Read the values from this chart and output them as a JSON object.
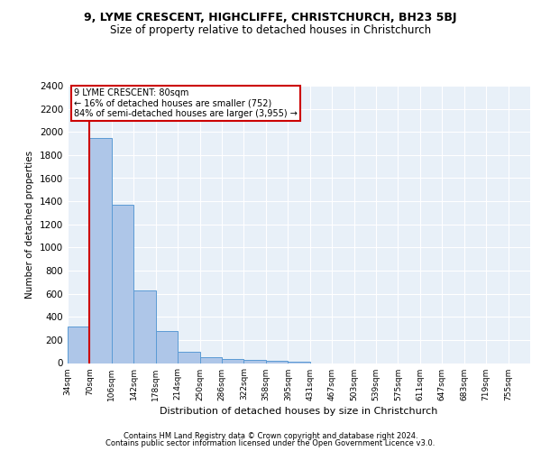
{
  "title_line1": "9, LYME CRESCENT, HIGHCLIFFE, CHRISTCHURCH, BH23 5BJ",
  "title_line2": "Size of property relative to detached houses in Christchurch",
  "xlabel": "Distribution of detached houses by size in Christchurch",
  "ylabel": "Number of detached properties",
  "footer_line1": "Contains HM Land Registry data © Crown copyright and database right 2024.",
  "footer_line2": "Contains public sector information licensed under the Open Government Licence v3.0.",
  "bin_labels": [
    "34sqm",
    "70sqm",
    "106sqm",
    "142sqm",
    "178sqm",
    "214sqm",
    "250sqm",
    "286sqm",
    "322sqm",
    "358sqm",
    "395sqm",
    "431sqm",
    "467sqm",
    "503sqm",
    "539sqm",
    "575sqm",
    "611sqm",
    "647sqm",
    "683sqm",
    "719sqm",
    "755sqm"
  ],
  "bar_values": [
    320,
    1950,
    1370,
    625,
    280,
    100,
    50,
    35,
    28,
    20,
    15,
    0,
    0,
    0,
    0,
    0,
    0,
    0,
    0,
    0,
    0
  ],
  "bar_color": "#aec6e8",
  "bar_edge_color": "#5b9bd5",
  "background_color": "#e8f0f8",
  "grid_color": "#ffffff",
  "property_line_x": 1.0,
  "property_label": "9 LYME CRESCENT: 80sqm",
  "annotation_line1": "← 16% of detached houses are smaller (752)",
  "annotation_line2": "84% of semi-detached houses are larger (3,955) →",
  "annotation_box_color": "#ffffff",
  "annotation_box_edge_color": "#cc0000",
  "vline_color": "#cc0000",
  "ylim": [
    0,
    2400
  ],
  "yticks": [
    0,
    200,
    400,
    600,
    800,
    1000,
    1200,
    1400,
    1600,
    1800,
    2000,
    2200,
    2400
  ]
}
